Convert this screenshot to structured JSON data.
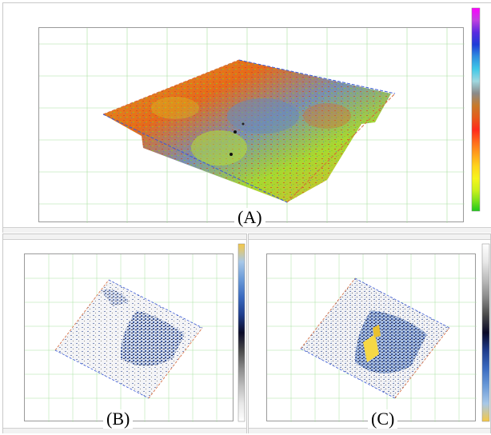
{
  "panel_a": {
    "label": "(A)",
    "title_lines": [
      "",
      ""
    ],
    "colorbar_stops": [
      "#ff00ff",
      "#c040e0",
      "#5a2be0",
      "#1e3cd8",
      "#2e8fe0",
      "#3fc8e8",
      "#9fd8e0",
      "#8a8a8a",
      "#c87a2a",
      "#e65a1a",
      "#ff2a1a",
      "#ff6a1a",
      "#ffa21a",
      "#ffd51a",
      "#f5f51a",
      "#c8f01a",
      "#7ae01a",
      "#1ec81a"
    ]
  },
  "panel_b": {
    "label": "(B)",
    "title_lines": [
      "",
      ""
    ],
    "colorbar_stops": [
      "#f6c845",
      "#a8c8e8",
      "#6a9ad8",
      "#3a6ac0",
      "#1e3c8c",
      "#0a0a28",
      "#4a4a4a",
      "#8a8a8a",
      "#bdbdbd",
      "#e8e8e8",
      "#ffffff"
    ]
  },
  "panel_c": {
    "label": "(C)",
    "title_lines": [
      "",
      ""
    ],
    "colorbar_stops": [
      "#ffffff",
      "#e8e8e8",
      "#bdbdbd",
      "#8a8a8a",
      "#4a4a4a",
      "#0a0a28",
      "#1e3c8c",
      "#3a6ac0",
      "#6a9ad8",
      "#a8c8e8",
      "#f6c845"
    ]
  }
}
